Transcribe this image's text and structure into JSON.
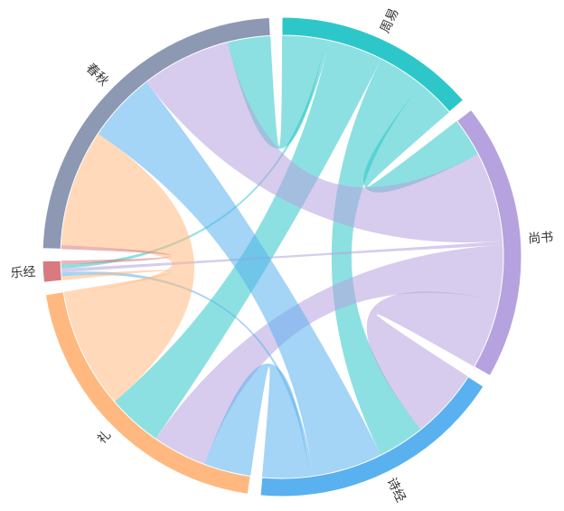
{
  "chart_data": {
    "type": "chord",
    "categories": [
      "周易",
      "尚书",
      "诗经",
      "礼",
      "乐经",
      "春秋"
    ],
    "colors": [
      "#2ec7c9",
      "#b6a2de",
      "#5ab1ef",
      "#ffb980",
      "#d87a80",
      "#8d98b3"
    ],
    "matrix": [
      [
        null,
        10,
        12,
        14,
        1,
        11
      ],
      [
        10,
        null,
        18,
        14,
        1,
        23
      ],
      [
        12,
        18,
        null,
        12,
        1,
        18
      ],
      [
        14,
        14,
        12,
        null,
        1,
        30
      ],
      [
        1,
        1,
        1,
        1,
        null,
        1
      ],
      [
        11,
        23,
        18,
        30,
        1,
        null
      ]
    ]
  }
}
